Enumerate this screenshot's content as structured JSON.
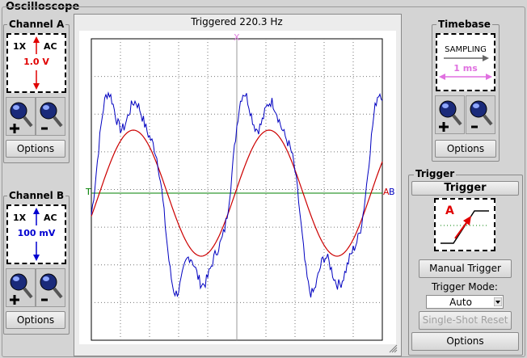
{
  "window": {
    "title": "Oscilloscope"
  },
  "channel_a": {
    "title": "Channel A",
    "probe": "1X",
    "coupling": "AC",
    "scale": "1.0 V",
    "options_label": "Options",
    "color": "#e00000"
  },
  "channel_b": {
    "title": "Channel B",
    "probe": "1X",
    "coupling": "AC",
    "scale": "100 mV",
    "options_label": "Options",
    "color": "#0000d0"
  },
  "scope": {
    "status": "Triggered 220.3 Hz",
    "trigger_marker": "T",
    "x_marker": "X",
    "channel_a_marker": "A",
    "channel_b_marker": "B"
  },
  "timebase": {
    "title": "Timebase",
    "mode": "SAMPLING",
    "scale": "1 ms",
    "options_label": "Options"
  },
  "trigger": {
    "title": "Trigger",
    "header": "Trigger",
    "source": "A",
    "manual_label": "Manual Trigger",
    "mode_label": "Trigger Mode:",
    "mode_value": "Auto",
    "single_shot_label": "Single-Shot Reset",
    "options_label": "Options"
  }
}
